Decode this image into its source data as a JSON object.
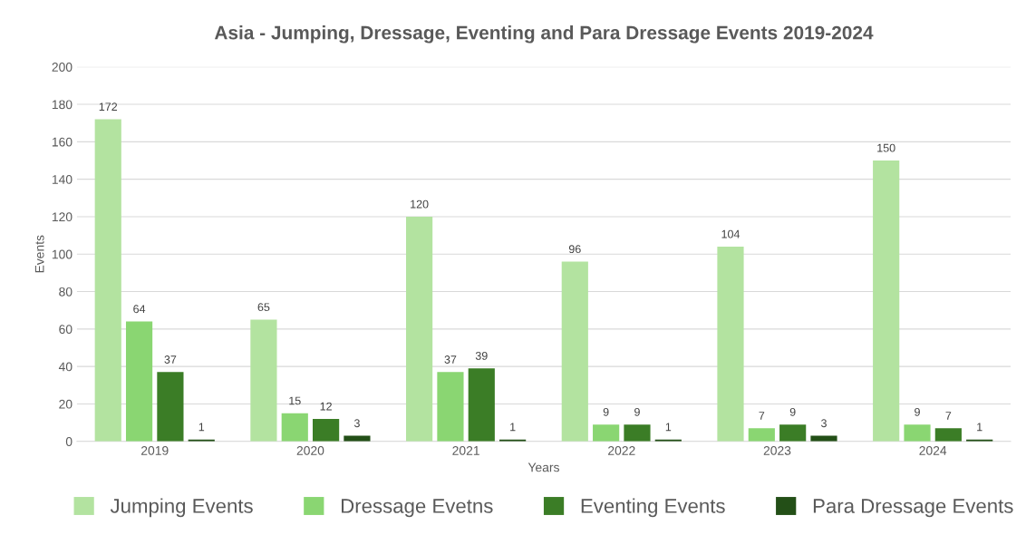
{
  "chart_data": {
    "type": "bar",
    "title": "Asia - Jumping, Dressage, Eventing and Para Dressage Events 2019-2024",
    "xlabel": "Years",
    "ylabel": "Events",
    "categories": [
      "2019",
      "2020",
      "2021",
      "2022",
      "2023",
      "2024"
    ],
    "series": [
      {
        "name": "Jumping Events",
        "color": "#b3e3a0",
        "values": [
          172,
          65,
          120,
          96,
          104,
          150
        ]
      },
      {
        "name": "Dressage Evetns",
        "color": "#8ad672",
        "values": [
          64,
          15,
          37,
          9,
          7,
          9
        ]
      },
      {
        "name": "Eventing Events",
        "color": "#3b7d26",
        "values": [
          37,
          12,
          39,
          9,
          9,
          7
        ]
      },
      {
        "name": "Para Dressage Events",
        "color": "#234f17",
        "values": [
          1,
          3,
          1,
          1,
          3,
          1
        ]
      }
    ],
    "ylim": [
      0,
      200
    ],
    "yticks": [
      0,
      20,
      40,
      60,
      80,
      100,
      120,
      140,
      160,
      180,
      200
    ],
    "grid": "y",
    "legend": "bottom",
    "data_labels": true
  }
}
